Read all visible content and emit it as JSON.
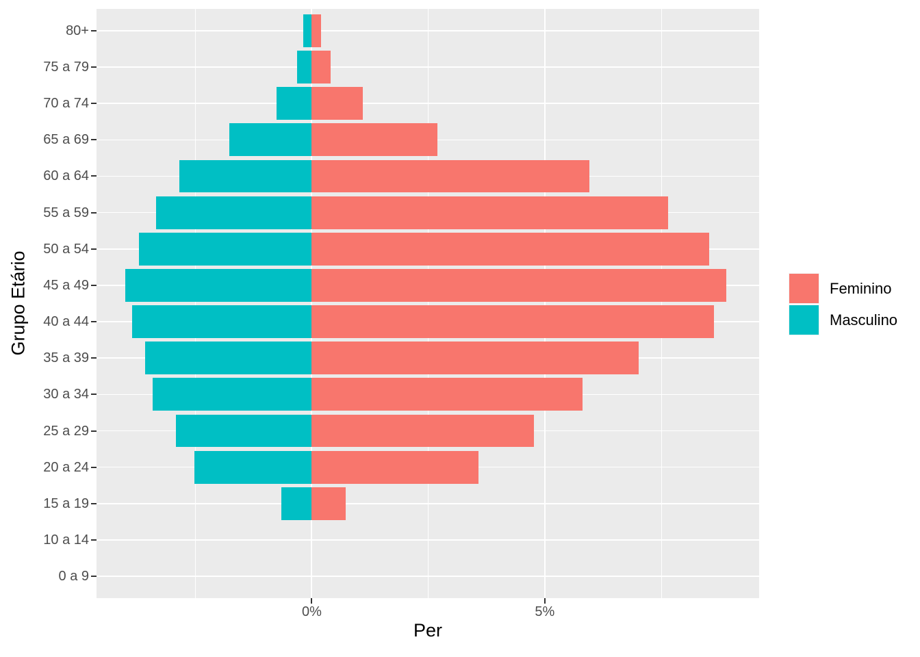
{
  "chart_data": {
    "type": "bar",
    "subtype": "population-pyramid",
    "orientation": "horizontal",
    "title": "",
    "xlabel": "Per",
    "ylabel": "Grupo Etário",
    "categories": [
      "0 a 9",
      "10 a 14",
      "15 a 19",
      "20 a 24",
      "25 a 29",
      "30 a 34",
      "35 a 39",
      "40 a 44",
      "45 a 49",
      "50 a 54",
      "55 a 59",
      "60 a 64",
      "65 a 69",
      "70 a 74",
      "75 a 79",
      "80+"
    ],
    "series": [
      {
        "name": "Feminino",
        "color": "#F8766D",
        "values": [
          0,
          0,
          0.73,
          3.58,
          4.76,
          5.81,
          7.02,
          8.63,
          8.9,
          8.53,
          7.64,
          5.95,
          2.69,
          1.09,
          0.4,
          0.2
        ]
      },
      {
        "name": "Masculino",
        "color": "#00BFC4",
        "values": [
          0,
          0,
          -0.66,
          -2.52,
          -2.91,
          -3.41,
          -3.58,
          -3.86,
          -4.0,
          -3.71,
          -3.34,
          -2.84,
          -1.77,
          -0.75,
          -0.32,
          -0.18
        ]
      }
    ],
    "x_ticks": [
      {
        "value": 0,
        "label": "0%"
      },
      {
        "value": 5,
        "label": "5%"
      }
    ],
    "x_major_grid": [
      0,
      5
    ],
    "x_minor_grid": [
      -2.5,
      2.5,
      7.5
    ],
    "xlim": [
      -4.62,
      9.6
    ],
    "bar_width_fraction": 0.9,
    "category_expansion": 0.6,
    "legend_position": "right",
    "grid": true,
    "colors": {
      "panel_bg": "#EBEBEB",
      "grid": "#FFFFFF",
      "tick_mark": "#333333",
      "tick_label": "#4D4D4D",
      "axis_title": "#000000",
      "legend_key_bg": "#F2F2F2"
    }
  }
}
